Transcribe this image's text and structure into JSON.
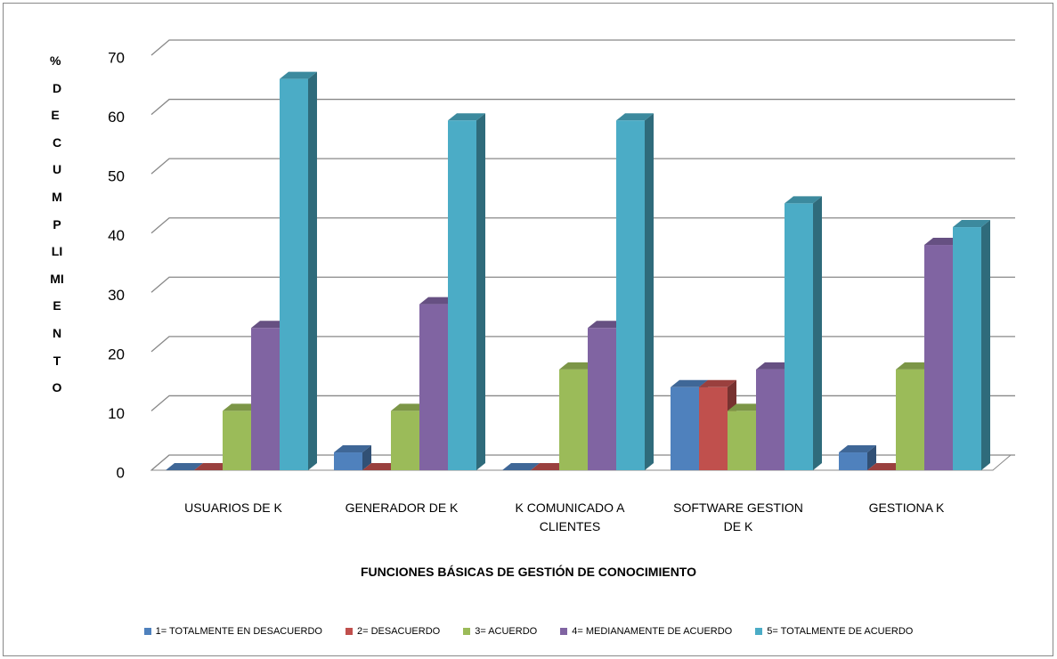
{
  "chart_data": {
    "type": "bar3d",
    "ylabel": "% DE CUMPLIMIENTO",
    "xlabel": "FUNCIONES BÁSICAS DE GESTIÓN DE CONOCIMIENTO",
    "categories": [
      "USUARIOS DE K",
      "GENERADOR DE K",
      "K COMUNICADO A CLIENTES",
      "SOFTWARE GESTION DE K",
      "GESTIONA K"
    ],
    "series": [
      {
        "name": "1= TOTALMENTE EN DESACUERDO",
        "color": "#4f81bd",
        "values": [
          0,
          3,
          0,
          14,
          3
        ]
      },
      {
        "name": "2= DESACUERDO",
        "color": "#c0504d",
        "values": [
          0,
          0,
          0,
          14,
          0
        ]
      },
      {
        "name": "3= ACUERDO",
        "color": "#9bbb59",
        "values": [
          10,
          10,
          17,
          10,
          17
        ]
      },
      {
        "name": "4= MEDIANAMENTE DE ACUERDO",
        "color": "#8064a2",
        "values": [
          24,
          28,
          24,
          17,
          38
        ]
      },
      {
        "name": "5= TOTALMENTE DE ACUERDO",
        "color": "#4bacc6",
        "values": [
          66,
          59,
          59,
          45,
          41
        ]
      }
    ],
    "ylim": [
      0,
      70
    ],
    "yticks": [
      0,
      10,
      20,
      30,
      40,
      50,
      60,
      70
    ],
    "grid": true,
    "legend": "bottom"
  }
}
